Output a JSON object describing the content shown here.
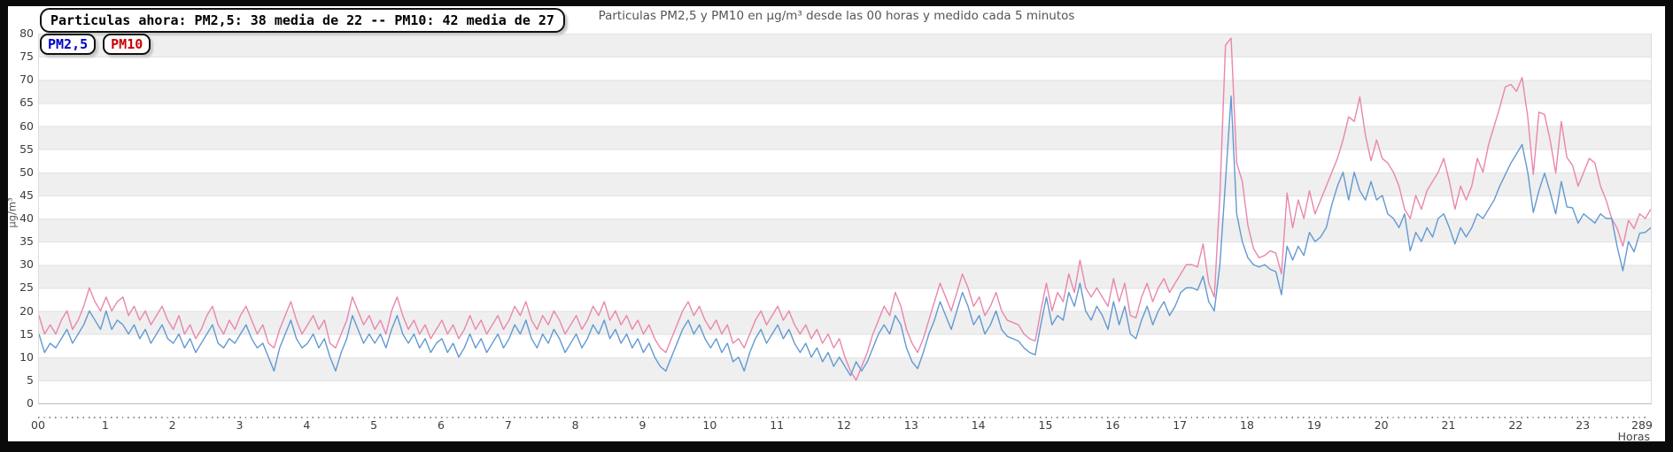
{
  "status": {
    "text": "Particulas ahora: PM2,5: 38 media de 22 -- PM10: 42 media de 27"
  },
  "legend": {
    "items": [
      {
        "label": "PM2,5",
        "color": "#0000cc"
      },
      {
        "label": "PM10",
        "color": "#cc0000"
      }
    ]
  },
  "chart_data": {
    "type": "line",
    "title": "Particulas PM2,5 y PM10 en µg/m³ desde las 00 horas y medido cada 5 minutos",
    "x_axis": {
      "label": "Horas",
      "tick_labels": [
        "00",
        "1",
        "2",
        "3",
        "4",
        "5",
        "6",
        "7",
        "8",
        "9",
        "10",
        "11",
        "12",
        "13",
        "14",
        "15",
        "16",
        "17",
        "18",
        "19",
        "20",
        "21",
        "22",
        "23",
        "289"
      ],
      "samples_per_hour": 12,
      "total_samples": 289
    },
    "y_axis": {
      "label": "µg/m³",
      "min": 0,
      "max": 80,
      "step": 5
    },
    "grid": {
      "band_color": "#efefef",
      "line_color": "#e2e2e2",
      "legend_position": "top-left"
    },
    "series": [
      {
        "name": "PM10",
        "color": "#e986ad",
        "current": 42,
        "mean": 27,
        "values": [
          19,
          15,
          17,
          15,
          18,
          20,
          16,
          18,
          21,
          25,
          22,
          20,
          23,
          20,
          22,
          23,
          19,
          21,
          18,
          20,
          17,
          19,
          21,
          18,
          16,
          19,
          15,
          17,
          14,
          16,
          19,
          21,
          17,
          15,
          18,
          16,
          19,
          21,
          18,
          15,
          17,
          13,
          12,
          16,
          19,
          22,
          18,
          15,
          17,
          19,
          16,
          18,
          13,
          12,
          15,
          18,
          23,
          20,
          17,
          19,
          16,
          18,
          15,
          20,
          23,
          19,
          16,
          18,
          15,
          17,
          14,
          16,
          18,
          15,
          17,
          14,
          16,
          19,
          16,
          18,
          15,
          17,
          19,
          16,
          18,
          21,
          19,
          22,
          18,
          16,
          19,
          17,
          20,
          18,
          15,
          17,
          19,
          16,
          18,
          21,
          19,
          22,
          18,
          20,
          17,
          19,
          16,
          18,
          15,
          17,
          14,
          12,
          11,
          14,
          17,
          20,
          22,
          19,
          21,
          18,
          16,
          18,
          15,
          17,
          13,
          14,
          12,
          15,
          18,
          20,
          17,
          19,
          21,
          18,
          20,
          17,
          15,
          17,
          14,
          16,
          13,
          15,
          12,
          14,
          10,
          7,
          5,
          8,
          11,
          15,
          18,
          21,
          19,
          24,
          21,
          16,
          13,
          11,
          14,
          18,
          22,
          26,
          23,
          20,
          24,
          28,
          25,
          21,
          23,
          19,
          21,
          24,
          20,
          18,
          17.5,
          17,
          15,
          14,
          13.5,
          20,
          26,
          20,
          24,
          22,
          28,
          24,
          31,
          25,
          23,
          25,
          23,
          21,
          27,
          22,
          26,
          19,
          18.5,
          23,
          26,
          22,
          25,
          27,
          24,
          26,
          28,
          30,
          30,
          29.5,
          34.5,
          26,
          23,
          45,
          77.5,
          79,
          52,
          48,
          38.5,
          33.5,
          31.5,
          32,
          33,
          32.5,
          28,
          45.5,
          38,
          44,
          40,
          46,
          41,
          44,
          47,
          50,
          53,
          57,
          62,
          61,
          66.3,
          58,
          52.5,
          57,
          53,
          52,
          50,
          47,
          42,
          40,
          45,
          42,
          46,
          48,
          50,
          53,
          48,
          42,
          47,
          44,
          47,
          53,
          50,
          56,
          60,
          64,
          68.5,
          69,
          67.5,
          70.5,
          62,
          49.5,
          63,
          62.5,
          57,
          49.8,
          61,
          53.2,
          51.5,
          47,
          50,
          53,
          52,
          47,
          44,
          40,
          37.8,
          34,
          39.6,
          37.8,
          41,
          40,
          42
        ]
      },
      {
        "name": "PM2,5",
        "color": "#6299d2",
        "current": 38,
        "mean": 22,
        "values": [
          15,
          11,
          13,
          12,
          14,
          16,
          13,
          15,
          17,
          20,
          18,
          16,
          20,
          16,
          18,
          17,
          15,
          17,
          14,
          16,
          13,
          15,
          17,
          14,
          13,
          15,
          12,
          14,
          11,
          13,
          15,
          17,
          13,
          12,
          14,
          13,
          15,
          17,
          14,
          12,
          13,
          10,
          7,
          12,
          15,
          18,
          14,
          12,
          13,
          15,
          12,
          14,
          10,
          7,
          11,
          14,
          19,
          16,
          13,
          15,
          13,
          15,
          12,
          16,
          19,
          15,
          13,
          15,
          12,
          14,
          11,
          13,
          14,
          11,
          13,
          10,
          12,
          15,
          12,
          14,
          11,
          13,
          15,
          12,
          14,
          17,
          15,
          18,
          14,
          12,
          15,
          13,
          16,
          14,
          11,
          13,
          15,
          12,
          14,
          17,
          15,
          18,
          14,
          16,
          13,
          15,
          12,
          14,
          11,
          13,
          10,
          8,
          7,
          10,
          13,
          16,
          18,
          15,
          17,
          14,
          12,
          14,
          11,
          13,
          9,
          10,
          7,
          11,
          14,
          16,
          13,
          15,
          17,
          14,
          16,
          13,
          11,
          13,
          10,
          12,
          9,
          11,
          8,
          10,
          8,
          6,
          9,
          7,
          9,
          12,
          15,
          17,
          15,
          19,
          17,
          12,
          9,
          7.5,
          11,
          15,
          18,
          22,
          19,
          16,
          20,
          24,
          21,
          17,
          19,
          15,
          17,
          20,
          16,
          14.5,
          14,
          13.5,
          12,
          11,
          10.5,
          17,
          23,
          17,
          19,
          18,
          24,
          21,
          26,
          20,
          18,
          21,
          19,
          16,
          22,
          17,
          21,
          15,
          14,
          18,
          21,
          17,
          20,
          22,
          19,
          21,
          24,
          25,
          25,
          24.5,
          27.5,
          22,
          20,
          30,
          48,
          66.5,
          41,
          35,
          31.5,
          30,
          29.5,
          30,
          29,
          28.5,
          23.5,
          34,
          31,
          34,
          32,
          37,
          35,
          36,
          38,
          43,
          47,
          50,
          44,
          50,
          46,
          44,
          48,
          44,
          45,
          41,
          40,
          38,
          41,
          33,
          37,
          35,
          38,
          36,
          40,
          41,
          38,
          34.5,
          38,
          36,
          38,
          41,
          40,
          42,
          44,
          47,
          49.5,
          52,
          54,
          56,
          50,
          41.3,
          46,
          49.8,
          45.7,
          41,
          48,
          42.5,
          42.3,
          39,
          41,
          40,
          39,
          41,
          40,
          40,
          33.8,
          28.7,
          35,
          32.8,
          36.8,
          37,
          38
        ]
      }
    ]
  }
}
